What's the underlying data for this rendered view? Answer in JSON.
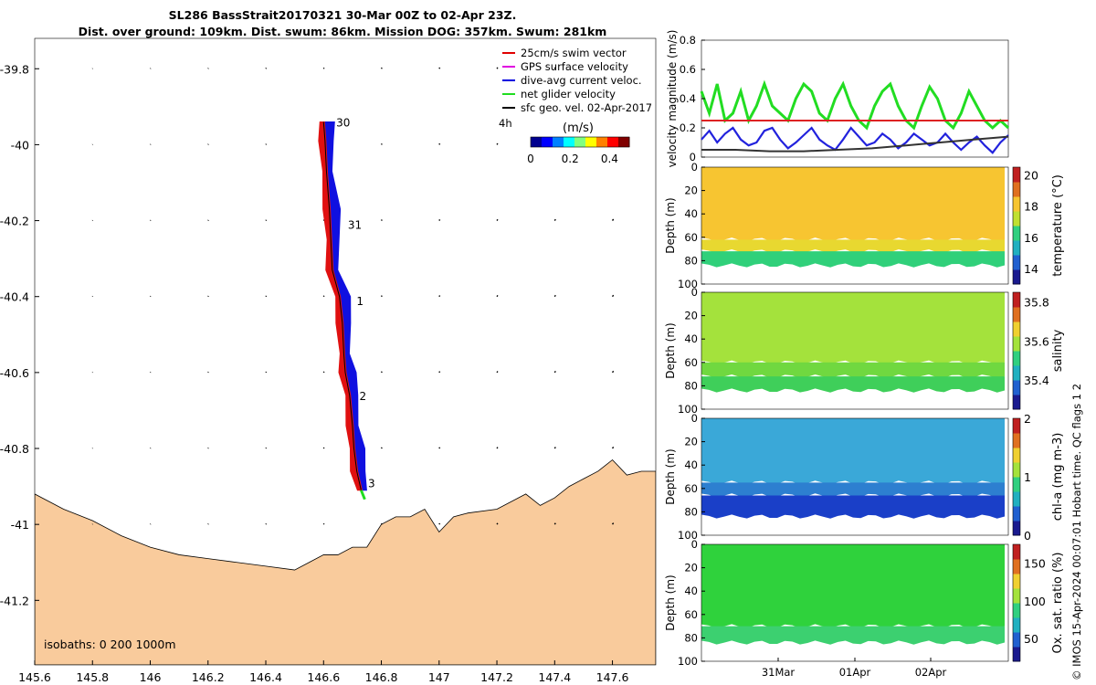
{
  "title": {
    "line1": "SL286 BassStrait20170321 30-Mar 00Z to 02-Apr 23Z.",
    "line2": "Dist. over ground: 109km. Dist. swum: 86km. Mission DOG: 357km. Swum: 281km"
  },
  "credit": "© IMOS 15-Apr-2024 00:07:01 Hobart time. QC flags 1  2",
  "chart_data": [
    {
      "type": "scatter",
      "id": "track-map",
      "x_ticks": [
        "145.6",
        "145.8",
        "146",
        "146.2",
        "146.4",
        "146.6",
        "146.8",
        "147",
        "147.2",
        "147.4",
        "147.6"
      ],
      "y_ticks": [
        "-39.8",
        "-40",
        "-40.2",
        "-40.4",
        "-40.6",
        "-40.8",
        "-41",
        "-41.2"
      ],
      "xlim": [
        145.6,
        147.75
      ],
      "ylim": [
        -41.37,
        -39.72
      ],
      "legend": [
        {
          "label": "25cm/s swim vector",
          "color": "#e00000"
        },
        {
          "label": "GPS surface velocity",
          "color": "#e000e0"
        },
        {
          "label": "dive-avg current veloc.",
          "color": "#0000e0"
        },
        {
          "label": "net glider velocity",
          "color": "#20dd20"
        },
        {
          "label": "sfc geo. vel. 02-Apr-2017",
          "color": "#000000"
        }
      ],
      "legend_sub": "4h",
      "colorbar": {
        "label": "(m/s)",
        "ticks": [
          "0",
          "0.2",
          "0.4"
        ],
        "range": [
          0,
          0.5
        ]
      },
      "isobaths_label": "isobaths: 0   200  1000m",
      "track": [
        [
          146.6,
          -39.94
        ],
        [
          146.605,
          -39.99
        ],
        [
          146.61,
          -40.07
        ],
        [
          146.62,
          -40.17
        ],
        [
          146.625,
          -40.25
        ],
        [
          146.63,
          -40.33
        ],
        [
          146.655,
          -40.4
        ],
        [
          146.665,
          -40.47
        ],
        [
          146.67,
          -40.55
        ],
        [
          146.675,
          -40.6
        ],
        [
          146.69,
          -40.66
        ],
        [
          146.7,
          -40.74
        ],
        [
          146.705,
          -40.8
        ],
        [
          146.715,
          -40.86
        ],
        [
          146.73,
          -40.91
        ]
      ],
      "day_labels": [
        {
          "text": "30",
          "lon": 146.625,
          "lat": -39.94
        },
        {
          "text": "31",
          "lon": 146.665,
          "lat": -40.21
        },
        {
          "text": "1",
          "lon": 146.695,
          "lat": -40.41
        },
        {
          "text": "2",
          "lon": 146.705,
          "lat": -40.66
        },
        {
          "text": "3",
          "lon": 146.735,
          "lat": -40.89
        }
      ],
      "coast": [
        [
          145.6,
          -40.92
        ],
        [
          145.7,
          -40.96
        ],
        [
          145.8,
          -40.99
        ],
        [
          145.9,
          -41.03
        ],
        [
          146.0,
          -41.06
        ],
        [
          146.1,
          -41.08
        ],
        [
          146.2,
          -41.09
        ],
        [
          146.3,
          -41.1
        ],
        [
          146.4,
          -41.11
        ],
        [
          146.5,
          -41.12
        ],
        [
          146.55,
          -41.1
        ],
        [
          146.6,
          -41.08
        ],
        [
          146.65,
          -41.08
        ],
        [
          146.7,
          -41.06
        ],
        [
          146.75,
          -41.06
        ],
        [
          146.8,
          -41.0
        ],
        [
          146.85,
          -40.98
        ],
        [
          146.9,
          -40.98
        ],
        [
          146.95,
          -40.96
        ],
        [
          147.0,
          -41.02
        ],
        [
          147.05,
          -40.98
        ],
        [
          147.1,
          -40.97
        ],
        [
          147.2,
          -40.96
        ],
        [
          147.3,
          -40.92
        ],
        [
          147.35,
          -40.95
        ],
        [
          147.4,
          -40.93
        ],
        [
          147.45,
          -40.9
        ],
        [
          147.5,
          -40.88
        ],
        [
          147.55,
          -40.86
        ],
        [
          147.6,
          -40.83
        ],
        [
          147.65,
          -40.87
        ],
        [
          147.7,
          -40.86
        ],
        [
          147.75,
          -40.86
        ]
      ],
      "land_color": "#f9cb9c",
      "current_arrows": {
        "u": 0.02,
        "v": 0.03
      }
    },
    {
      "type": "line",
      "id": "velocity-panel",
      "ylabel": "velocity magnitude (m/s)",
      "yticks": [
        "0",
        "0.2",
        "0.4",
        "0.6",
        "0.8"
      ],
      "ylim": [
        0,
        0.8
      ],
      "xlim": [
        0,
        4
      ],
      "series": [
        {
          "color": "#22dd22",
          "y": [
            0.45,
            0.3,
            0.5,
            0.25,
            0.3,
            0.45,
            0.25,
            0.35,
            0.5,
            0.35,
            0.3,
            0.25,
            0.4,
            0.5,
            0.45,
            0.3,
            0.25,
            0.4,
            0.5,
            0.35,
            0.25,
            0.2,
            0.35,
            0.45,
            0.5,
            0.35,
            0.25,
            0.2,
            0.35,
            0.48,
            0.4,
            0.25,
            0.2,
            0.3,
            0.45,
            0.35,
            0.25,
            0.2,
            0.25,
            0.2
          ]
        },
        {
          "color": "#2222dd",
          "y": [
            0.12,
            0.18,
            0.1,
            0.16,
            0.2,
            0.12,
            0.08,
            0.1,
            0.18,
            0.2,
            0.12,
            0.06,
            0.1,
            0.15,
            0.2,
            0.12,
            0.08,
            0.05,
            0.12,
            0.2,
            0.14,
            0.08,
            0.1,
            0.16,
            0.12,
            0.06,
            0.1,
            0.16,
            0.12,
            0.08,
            0.1,
            0.16,
            0.1,
            0.05,
            0.1,
            0.14,
            0.08,
            0.03,
            0.1,
            0.15
          ]
        },
        {
          "color": "#dd2222",
          "y": [
            0.25,
            0.25
          ]
        },
        {
          "color": "#333333",
          "y": [
            0.05,
            0.05,
            0.04,
            0.04,
            0.05,
            0.06,
            0.08,
            0.1,
            0.12,
            0.14
          ]
        }
      ]
    },
    {
      "type": "heatmap",
      "id": "temperature-panel",
      "ylabel": "Depth (m)",
      "yticks": [
        "0",
        "20",
        "40",
        "60",
        "80",
        "100"
      ],
      "ylim": [
        0,
        100
      ],
      "colorbar": {
        "label": "temperature (°C)",
        "ticks": [
          "14",
          "16",
          "18",
          "20"
        ],
        "range": [
          13,
          20.5
        ]
      },
      "layers": [
        {
          "from": 0,
          "to": 62,
          "color": "#f7c531"
        },
        {
          "from": 62,
          "to": 72,
          "color": "#e8d830"
        },
        {
          "from": 72,
          "to": 84,
          "color": "#30d07a"
        }
      ]
    },
    {
      "type": "heatmap",
      "id": "salinity-panel",
      "ylabel": "Depth (m)",
      "yticks": [
        "0",
        "20",
        "40",
        "60",
        "80",
        "100"
      ],
      "ylim": [
        0,
        100
      ],
      "colorbar": {
        "label": "salinity",
        "ticks": [
          "35.4",
          "35.6",
          "35.8"
        ],
        "range": [
          35.25,
          35.85
        ]
      },
      "layers": [
        {
          "from": 0,
          "to": 60,
          "color": "#a4e23c"
        },
        {
          "from": 60,
          "to": 72,
          "color": "#70d840"
        },
        {
          "from": 72,
          "to": 84,
          "color": "#3fcf5a"
        }
      ]
    },
    {
      "type": "heatmap",
      "id": "chla-panel",
      "ylabel": "Depth (m)",
      "yticks": [
        "0",
        "20",
        "40",
        "60",
        "80",
        "100"
      ],
      "ylim": [
        0,
        100
      ],
      "colorbar": {
        "label": "chl-a (mg m-3)",
        "ticks": [
          "0",
          "1",
          "2"
        ],
        "range": [
          0,
          2
        ]
      },
      "layers": [
        {
          "from": 0,
          "to": 55,
          "color": "#3aa8d8"
        },
        {
          "from": 55,
          "to": 66,
          "color": "#2d7fd0"
        },
        {
          "from": 66,
          "to": 84,
          "color": "#1a3fc8"
        }
      ]
    },
    {
      "type": "heatmap",
      "id": "oxygen-panel",
      "ylabel": "Depth (m)",
      "yticks": [
        "0",
        "20",
        "40",
        "60",
        "80",
        "100"
      ],
      "ylim": [
        0,
        100
      ],
      "x_ticks": [
        "31Mar",
        "01Apr",
        "02Apr"
      ],
      "colorbar": {
        "label": "Ox. sat. ratio (%)",
        "ticks": [
          "50",
          "100",
          "150"
        ],
        "range": [
          20,
          175
        ]
      },
      "layers": [
        {
          "from": 0,
          "to": 70,
          "color": "#2fd23c"
        },
        {
          "from": 70,
          "to": 84,
          "color": "#3cd070"
        }
      ]
    }
  ]
}
